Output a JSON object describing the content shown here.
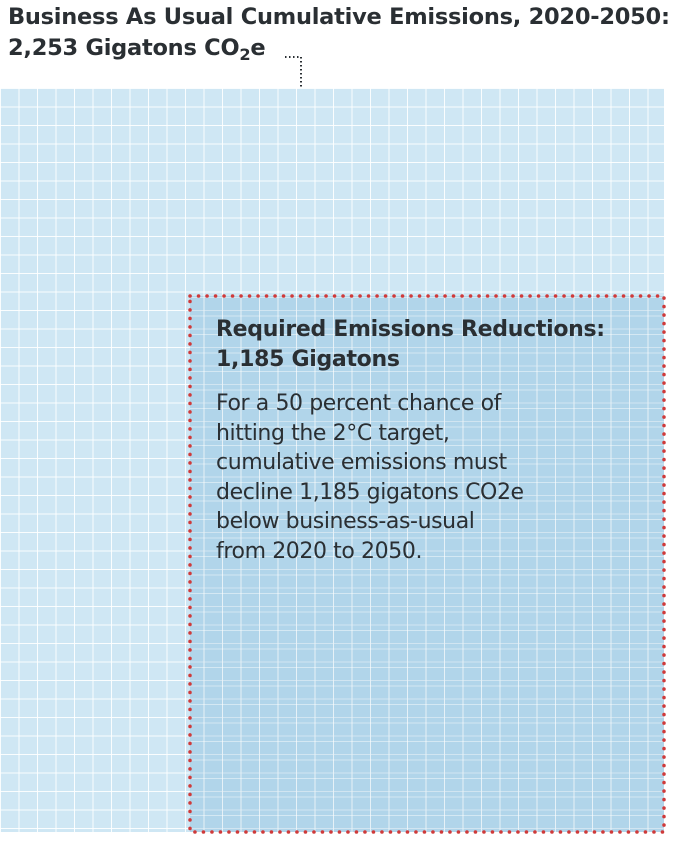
{
  "header": {
    "title_line1": "Business As Usual Cumulative Emissions, 2020-2050:",
    "title_line2_prefix": "2,253 Gigatons CO",
    "title_line2_subscript": "2",
    "title_line2_suffix": "e"
  },
  "reduction_box": {
    "heading_line1": "Required Emissions Reductions:",
    "heading_line2": "1,185 Gigatons",
    "body_lines": [
      "For a 50 percent chance of",
      "hitting the 2°C target,",
      "cumulative emissions must",
      "decline 1,185 gigatons CO2e",
      "below business-as-usual",
      "from 2020 to 2050."
    ]
  },
  "colors": {
    "grid_fill": "#cfe7f4",
    "reduction_fill": "#9cc9e5",
    "dotted_border": "#cf3a3a",
    "pointer": "#2a2f33",
    "text": "#2a2f33"
  }
}
